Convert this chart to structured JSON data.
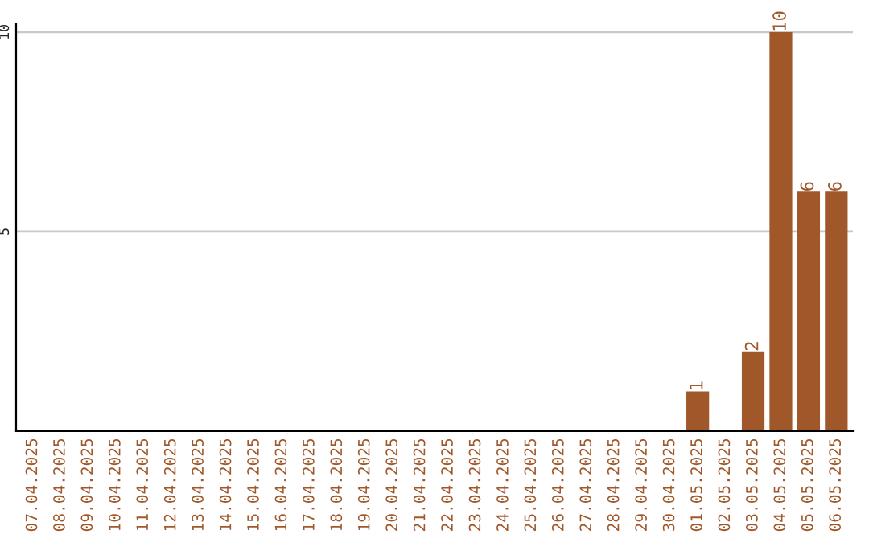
{
  "chart_data": {
    "type": "bar",
    "categories": [
      "07.04.2025",
      "08.04.2025",
      "09.04.2025",
      "10.04.2025",
      "11.04.2025",
      "12.04.2025",
      "13.04.2025",
      "14.04.2025",
      "15.04.2025",
      "16.04.2025",
      "17.04.2025",
      "18.04.2025",
      "19.04.2025",
      "20.04.2025",
      "21.04.2025",
      "22.04.2025",
      "23.04.2025",
      "24.04.2025",
      "25.04.2025",
      "26.04.2025",
      "27.04.2025",
      "28.04.2025",
      "29.04.2025",
      "30.04.2025",
      "01.05.2025",
      "02.05.2025",
      "03.05.2025",
      "04.05.2025",
      "05.05.2025",
      "06.05.2025"
    ],
    "values": [
      0,
      0,
      0,
      0,
      0,
      0,
      0,
      0,
      0,
      0,
      0,
      0,
      0,
      0,
      0,
      0,
      0,
      0,
      0,
      0,
      0,
      0,
      0,
      0,
      1,
      0,
      2,
      10,
      6,
      6
    ],
    "value_labels": [
      null,
      null,
      null,
      null,
      null,
      null,
      null,
      null,
      null,
      null,
      null,
      null,
      null,
      null,
      null,
      null,
      null,
      null,
      null,
      null,
      null,
      null,
      null,
      null,
      "1",
      null,
      "2",
      "10",
      "6",
      "6"
    ],
    "color": "#a0582a",
    "ylim": [
      0,
      10.2
    ],
    "yticks": [
      5,
      10
    ],
    "grid": "y",
    "legend": false
  }
}
